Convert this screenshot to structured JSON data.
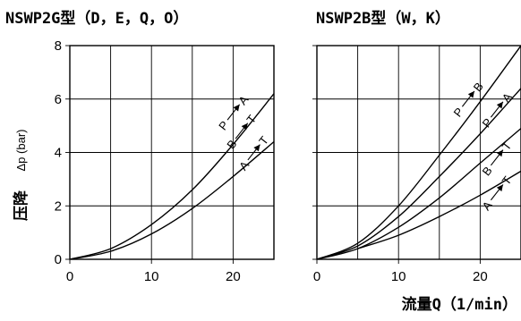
{
  "y_axis": {
    "label": "压降",
    "unit": "Δp (bar)"
  },
  "x_axis": {
    "label": "流量Q（1/min）"
  },
  "chart_data": [
    {
      "type": "line",
      "title": "NSWP2G型（D，E，Q，O）",
      "xlim": [
        0,
        25
      ],
      "ylim": [
        0,
        8
      ],
      "x_ticks": [
        0,
        10,
        20
      ],
      "y_ticks": [
        0,
        2,
        4,
        6,
        8
      ],
      "grid": true,
      "series": [
        {
          "name": "P→A B→T",
          "x": [
            0,
            5,
            10,
            15,
            20,
            25
          ],
          "y": [
            0,
            0.4,
            1.3,
            2.6,
            4.3,
            6.2
          ]
        },
        {
          "name": "A→T",
          "x": [
            0,
            5,
            10,
            15,
            20,
            25
          ],
          "y": [
            0,
            0.3,
            0.95,
            1.9,
            3.1,
            4.4
          ]
        }
      ],
      "annotations": [
        {
          "text": "P→A",
          "x": 18.5,
          "y": 4.9,
          "angle": -52
        },
        {
          "text": "B→T",
          "x": 19.5,
          "y": 4.2,
          "angle": -52
        },
        {
          "text": "A→T",
          "x": 21,
          "y": 3.4,
          "angle": -52
        }
      ]
    },
    {
      "type": "line",
      "title": "NSWP2B型（W，K）",
      "xlim": [
        0,
        25
      ],
      "ylim": [
        0,
        8
      ],
      "x_ticks": [
        0,
        10,
        20
      ],
      "y_ticks": [
        0,
        2,
        4,
        6,
        8
      ],
      "grid": true,
      "series": [
        {
          "name": "P→B",
          "x": [
            0,
            5,
            10,
            15,
            20,
            25
          ],
          "y": [
            0,
            0.6,
            2.0,
            3.9,
            5.9,
            8.0
          ]
        },
        {
          "name": "P→A",
          "x": [
            0,
            5,
            10,
            15,
            20,
            25
          ],
          "y": [
            0,
            0.5,
            1.6,
            3.1,
            4.7,
            6.4
          ]
        },
        {
          "name": "B→T",
          "x": [
            0,
            5,
            10,
            15,
            20,
            25
          ],
          "y": [
            0,
            0.4,
            1.2,
            2.3,
            3.6,
            4.9
          ]
        },
        {
          "name": "A→T",
          "x": [
            5,
            10,
            15,
            20,
            25
          ],
          "y": [
            0.4,
            0.9,
            1.6,
            2.4,
            3.3
          ]
        }
      ],
      "annotations": [
        {
          "text": "P→B",
          "x": 17,
          "y": 5.4,
          "angle": -52
        },
        {
          "text": "P→A",
          "x": 20.5,
          "y": 5.0,
          "angle": -52
        },
        {
          "text": "B→T",
          "x": 20.5,
          "y": 3.2,
          "angle": -52
        },
        {
          "text": "A→T",
          "x": 20.5,
          "y": 1.9,
          "angle": -52
        }
      ]
    }
  ]
}
